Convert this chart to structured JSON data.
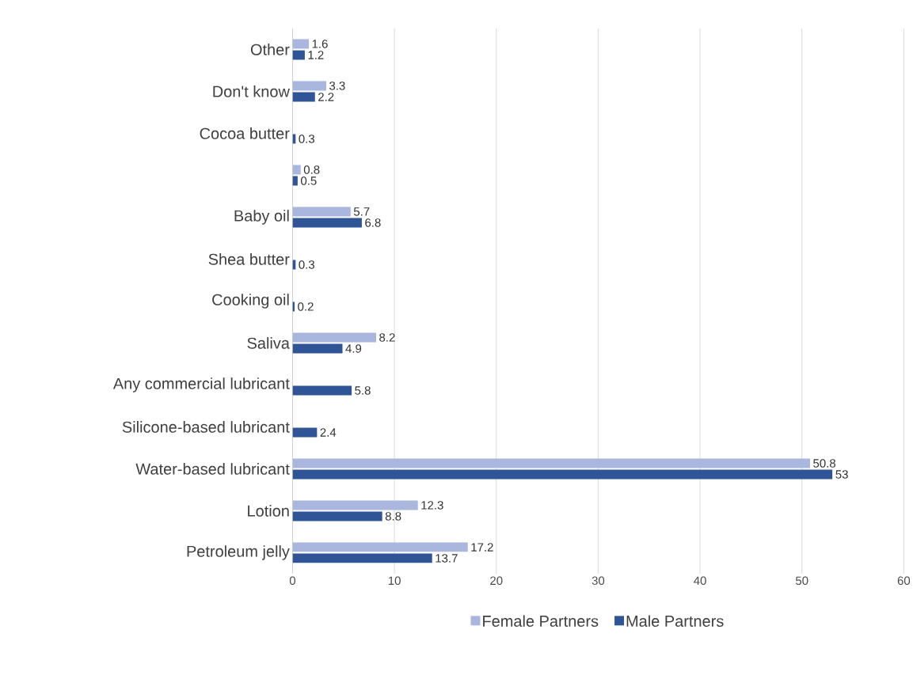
{
  "chart_data": {
    "type": "bar",
    "orientation": "horizontal",
    "categories": [
      "Other",
      "Don't know",
      "Cocoa butter",
      null,
      "Baby oil",
      "Shea butter",
      "Cooking oil",
      "Saliva",
      "Any commercial lubricant",
      "Silicone-based lubricant",
      "Water-based lubricant",
      "Lotion",
      "Petroleum jelly"
    ],
    "series": [
      {
        "name": "Female Partners",
        "color": "#a9b6de",
        "values": [
          1.6,
          3.3,
          null,
          0.8,
          5.7,
          null,
          null,
          8.2,
          null,
          null,
          50.8,
          12.3,
          17.2
        ]
      },
      {
        "name": "Male Partners",
        "color": "#2f5597",
        "values": [
          1.2,
          2.2,
          0.3,
          0.5,
          6.8,
          0.3,
          0.2,
          4.9,
          5.8,
          2.4,
          53,
          8.8,
          13.7
        ]
      }
    ],
    "xlim": [
      0,
      60
    ],
    "xticks": [
      0,
      10,
      20,
      30,
      40,
      50,
      60
    ],
    "grid": "x",
    "legend": "bottom",
    "data_labels": true
  }
}
